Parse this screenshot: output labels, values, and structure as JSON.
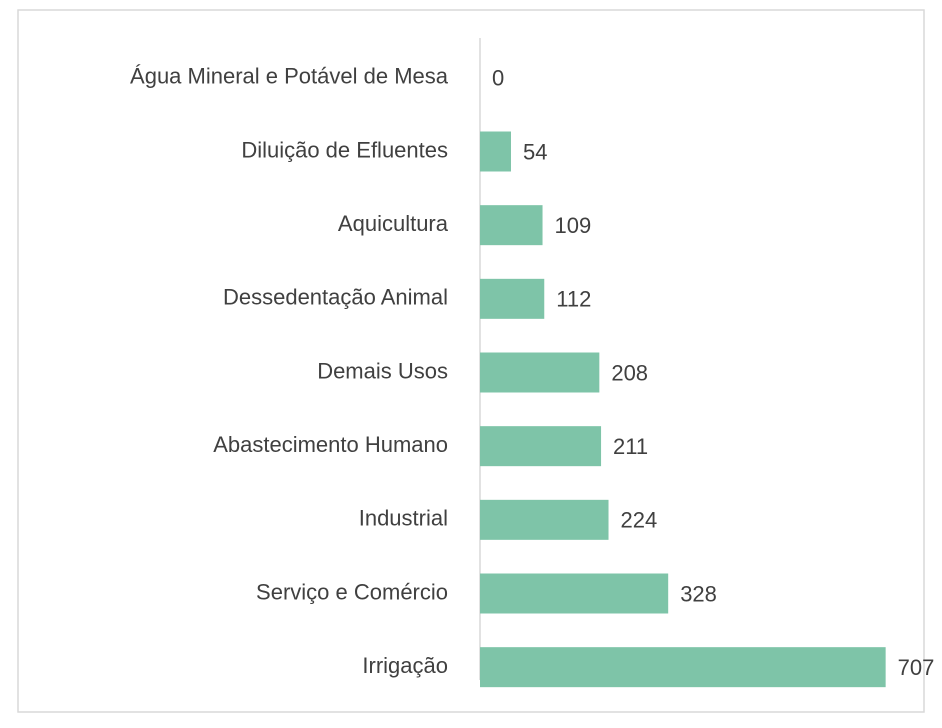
{
  "chart_data": {
    "type": "bar",
    "orientation": "horizontal",
    "categories": [
      "Água Mineral e Potável de Mesa",
      "Diluição de Efluentes",
      "Aquicultura",
      "Dessedentação Animal",
      "Demais Usos",
      "Abastecimento Humano",
      "Industrial",
      "Serviço e Comércio",
      "Irrigação"
    ],
    "values": [
      0,
      54,
      109,
      112,
      208,
      211,
      224,
      328,
      707
    ],
    "color": "#7ec4a8",
    "xlim": [
      0,
      800
    ]
  }
}
